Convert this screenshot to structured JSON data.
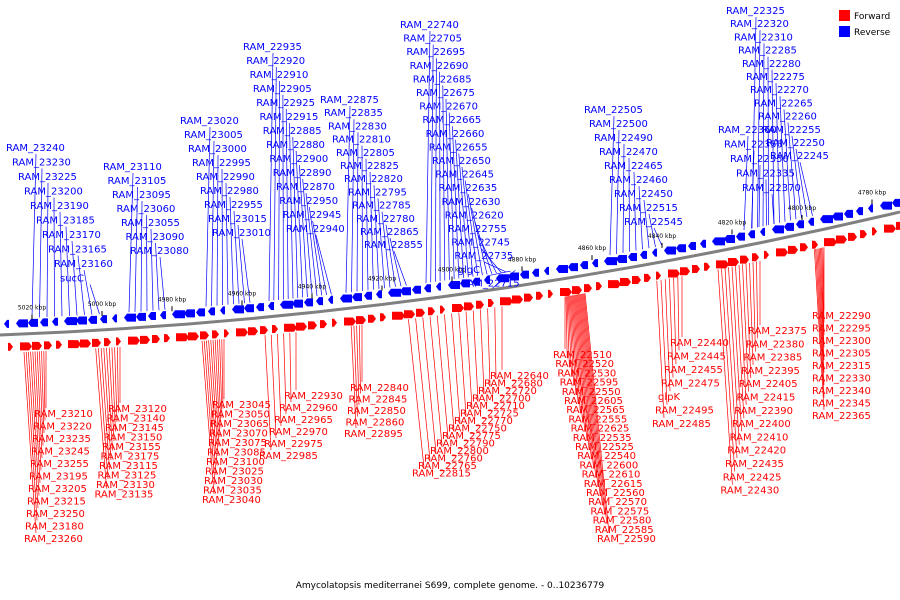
{
  "legend": {
    "forward_label": "Forward",
    "reverse_label": "Reverse",
    "forward_color": "#ff0000",
    "reverse_color": "#0000ff"
  },
  "caption": "Amycolatopsis mediterranei S699, complete genome. - 0..10236779",
  "backbone_color": "#808080",
  "ticks": [
    "5020 kbp",
    "5000 kbp",
    "4980 kbp",
    "4960 kbp",
    "4940 kbp",
    "4920 kbp",
    "4900 kbp",
    "4880 kbp",
    "4860 kbp",
    "4840 kbp",
    "4820 kbp",
    "4800 kbp",
    "4780 kbp"
  ],
  "reverse_genes": [
    "RAM_22325",
    "RAM_22320",
    "RAM_22310",
    "RAM_22285",
    "RAM_22280",
    "RAM_22275",
    "RAM_22270",
    "RAM_22265",
    "RAM_22260",
    "RAM_22255",
    "RAM_22250",
    "RAM_22245",
    "RAM_22360",
    "RAM_22355",
    "RAM_22350",
    "RAM_22335",
    "RAM_22370",
    "RAM_22505",
    "RAM_22500",
    "RAM_22490",
    "RAM_22470",
    "RAM_22465",
    "RAM_22460",
    "RAM_22450",
    "RAM_22515",
    "RAM_22545",
    "RAM_22740",
    "RAM_22705",
    "RAM_22695",
    "RAM_22690",
    "RAM_22685",
    "RAM_22675",
    "RAM_22670",
    "RAM_22665",
    "RAM_22660",
    "RAM_22655",
    "RAM_22650",
    "RAM_22645",
    "RAM_22635",
    "RAM_22630",
    "RAM_22620",
    "RAM_22755",
    "RAM_22745",
    "RAM_22735",
    "glgC",
    "RAM_22715",
    "RAM_22875",
    "RAM_22835",
    "RAM_22830",
    "RAM_22810",
    "RAM_22805",
    "RAM_22825",
    "RAM_22820",
    "RAM_22795",
    "RAM_22785",
    "RAM_22780",
    "RAM_22865",
    "RAM_22855",
    "RAM_22935",
    "RAM_22920",
    "RAM_22910",
    "RAM_22905",
    "RAM_22925",
    "RAM_22915",
    "RAM_22885",
    "RAM_22880",
    "RAM_22900",
    "RAM_22890",
    "RAM_22870",
    "RAM_22950",
    "RAM_22945",
    "RAM_22940",
    "RAM_23020",
    "RAM_23005",
    "RAM_23000",
    "RAM_22995",
    "RAM_22990",
    "RAM_22980",
    "RAM_22955",
    "RAM_23015",
    "RAM_23010",
    "RAM_23110",
    "RAM_23105",
    "RAM_23095",
    "RAM_23060",
    "RAM_23055",
    "RAM_23090",
    "RAM_23080",
    "RAM_23240",
    "RAM_23230",
    "RAM_23225",
    "RAM_23200",
    "RAM_23190",
    "RAM_23185",
    "RAM_23170",
    "RAM_23165",
    "RAM_23160",
    "sucC"
  ],
  "forward_genes": [
    "RAM_22290",
    "RAM_22295",
    "RAM_22300",
    "RAM_22305",
    "RAM_22315",
    "RAM_22330",
    "RAM_22340",
    "RAM_22345",
    "RAM_22365",
    "RAM_22375",
    "RAM_22380",
    "RAM_22385",
    "RAM_22395",
    "RAM_22405",
    "RAM_22415",
    "RAM_22390",
    "RAM_22400",
    "RAM_22410",
    "RAM_22420",
    "RAM_22435",
    "RAM_22425",
    "RAM_22430",
    "RAM_22440",
    "RAM_22445",
    "RAM_22455",
    "RAM_22475",
    "glpK",
    "RAM_22495",
    "RAM_22485",
    "RAM_22510",
    "RAM_22520",
    "RAM_22530",
    "RAM_22595",
    "RAM_22550",
    "RAM_22605",
    "RAM_22565",
    "RAM_22555",
    "RAM_22625",
    "RAM_22535",
    "RAM_22525",
    "RAM_22540",
    "RAM_22600",
    "RAM_22610",
    "RAM_22615",
    "RAM_22560",
    "RAM_22570",
    "RAM_22575",
    "RAM_22580",
    "RAM_22585",
    "RAM_22590",
    "RAM_22640",
    "RAM_22680",
    "RAM_22720",
    "RAM_22700",
    "RAM_22710",
    "RAM_22725",
    "RAM_22770",
    "RAM_22750",
    "RAM_22775",
    "RAM_22790",
    "RAM_22800",
    "RAM_22760",
    "RAM_22765",
    "RAM_22815",
    "RAM_22840",
    "RAM_22845",
    "RAM_22850",
    "RAM_22860",
    "RAM_22895",
    "RAM_22930",
    "RAM_22960",
    "RAM_22965",
    "RAM_22970",
    "RAM_22975",
    "RAM_22985",
    "RAM_23045",
    "RAM_23050",
    "RAM_23065",
    "RAM_23070",
    "RAM_23075",
    "RAM_23085",
    "RAM_23100",
    "RAM_23025",
    "RAM_23030",
    "RAM_23035",
    "RAM_23040",
    "RAM_23120",
    "RAM_23140",
    "RAM_23145",
    "RAM_23150",
    "RAM_23155",
    "RAM_23175",
    "RAM_23115",
    "RAM_23125",
    "RAM_23130",
    "RAM_23135",
    "RAM_23210",
    "RAM_23220",
    "RAM_23235",
    "RAM_23245",
    "RAM_23255",
    "RAM_23195",
    "RAM_23205",
    "RAM_23215",
    "RAM_23250",
    "RAM_23180",
    "RAM_23260"
  ]
}
